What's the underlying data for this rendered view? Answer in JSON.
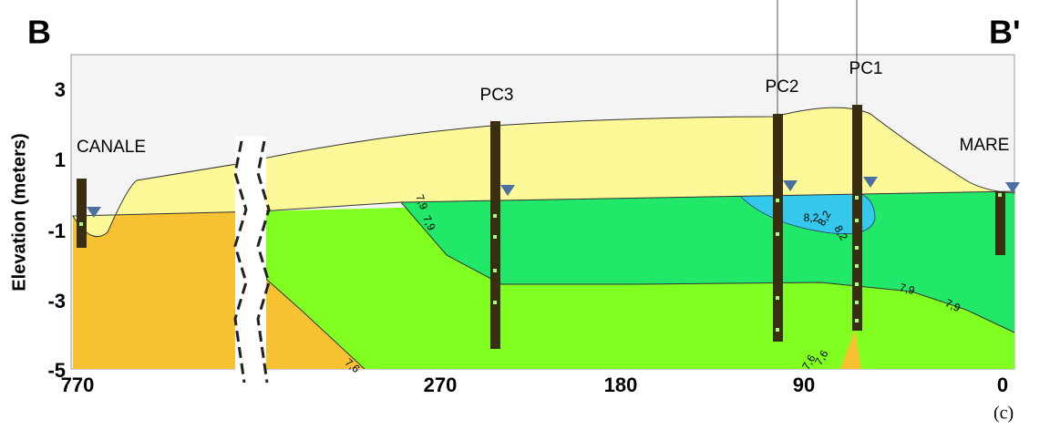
{
  "header": {
    "left": "B",
    "right": "B'"
  },
  "y_axis": {
    "title": "Elevation (meters)",
    "ticks": [
      "3",
      "1",
      "-1",
      "-3",
      "-5"
    ]
  },
  "x_axis": {
    "ticks": [
      "770",
      "270",
      "180",
      "90",
      "0"
    ]
  },
  "wells": [
    "CANALE",
    "PC3",
    "PC2",
    "PC1",
    "MARE"
  ],
  "contour_labels": [
    "7,9",
    "7,9",
    "8,2",
    "8,2",
    "8,2",
    "7,9",
    "7,9",
    "7,6",
    "7,6",
    "7,6"
  ],
  "caption": "(c)"
}
